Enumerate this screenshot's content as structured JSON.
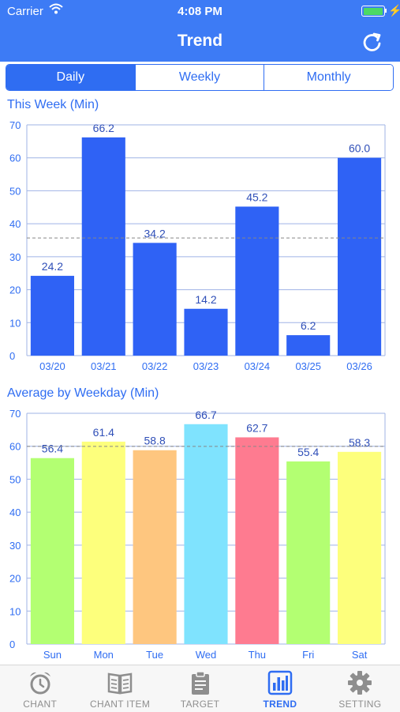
{
  "status_bar": {
    "carrier": "Carrier",
    "time": "4:08 PM",
    "battery_icon": "battery-charging-icon"
  },
  "nav": {
    "title": "Trend",
    "refresh_icon": "refresh-icon"
  },
  "segments": [
    {
      "label": "Daily",
      "selected": true
    },
    {
      "label": "Weekly",
      "selected": false
    },
    {
      "label": "Monthly",
      "selected": false
    }
  ],
  "chart_data": [
    {
      "type": "bar",
      "title": "This Week (Min)",
      "categories": [
        "03/20",
        "03/21",
        "03/22",
        "03/23",
        "03/24",
        "03/25",
        "03/26"
      ],
      "values": [
        24.2,
        66.2,
        34.2,
        14.2,
        45.2,
        6.2,
        60.0
      ],
      "value_labels": [
        "24.2",
        "66.2",
        "34.2",
        "14.2",
        "45.2",
        "6.2",
        "60.0"
      ],
      "colors": [
        "#2f62f5",
        "#2f62f5",
        "#2f62f5",
        "#2f62f5",
        "#2f62f5",
        "#2f62f5",
        "#2f62f5"
      ],
      "ylim": [
        0,
        70
      ],
      "yticks": [
        0,
        10,
        20,
        30,
        40,
        50,
        60,
        70
      ],
      "average_line": 35.7,
      "grid": true
    },
    {
      "type": "bar",
      "title": "Average by Weekday (Min)",
      "categories": [
        "Sun",
        "Mon",
        "Tue",
        "Wed",
        "Thu",
        "Fri",
        "Sat"
      ],
      "values": [
        56.4,
        61.4,
        58.8,
        66.7,
        62.7,
        55.4,
        58.3
      ],
      "value_labels": [
        "56.4",
        "61.4",
        "58.8",
        "66.7",
        "62.7",
        "55.4",
        "58.3"
      ],
      "colors": [
        "#b3ff72",
        "#fdff7c",
        "#fec67f",
        "#7fe3fe",
        "#fe7b90",
        "#b3ff72",
        "#fdff7c"
      ],
      "ylim": [
        0,
        70
      ],
      "yticks": [
        0,
        10,
        20,
        30,
        40,
        50,
        60,
        70
      ],
      "average_line": 59.96,
      "grid": true
    }
  ],
  "tabs": [
    {
      "label": "CHANT",
      "icon": "alarm-clock-icon",
      "active": false
    },
    {
      "label": "CHANT ITEM",
      "icon": "open-book-icon",
      "active": false
    },
    {
      "label": "TARGET",
      "icon": "clipboard-icon",
      "active": false
    },
    {
      "label": "TREND",
      "icon": "bar-chart-icon",
      "active": true
    },
    {
      "label": "SETTING",
      "icon": "gear-icon",
      "active": false
    }
  ],
  "theme": {
    "accent": "#2f6df2",
    "header": "#3d7bf5"
  }
}
